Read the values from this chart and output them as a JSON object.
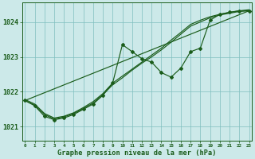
{
  "background_color": "#cce9e9",
  "grid_color": "#7fbfbf",
  "line_color": "#1a5c1a",
  "xlabel": "Graphe pression niveau de la mer (hPa)",
  "ylim": [
    1020.6,
    1024.55
  ],
  "xlim": [
    -0.3,
    23.3
  ],
  "yticks": [
    1021,
    1022,
    1023,
    1024
  ],
  "xticks": [
    0,
    1,
    2,
    3,
    4,
    5,
    6,
    7,
    8,
    9,
    10,
    11,
    12,
    13,
    14,
    15,
    16,
    17,
    18,
    19,
    20,
    21,
    22,
    23
  ],
  "series_zigzag_x": [
    0,
    1,
    2,
    3,
    4,
    5,
    6,
    7,
    8,
    9,
    10,
    11,
    12,
    13,
    14,
    15,
    16,
    17,
    18,
    19,
    20,
    21,
    22,
    23
  ],
  "series_zigzag_y": [
    1021.75,
    1021.6,
    1021.3,
    1021.2,
    1021.25,
    1021.35,
    1021.5,
    1021.65,
    1021.9,
    1022.25,
    1023.35,
    1023.15,
    1022.95,
    1022.85,
    1022.55,
    1022.42,
    1022.68,
    1023.15,
    1023.25,
    1024.05,
    1024.22,
    1024.28,
    1024.32,
    1024.32
  ],
  "series_trend_x": [
    0,
    23
  ],
  "series_trend_y": [
    1021.75,
    1024.32
  ],
  "series_band1_x": [
    0,
    1,
    2,
    3,
    4,
    5,
    6,
    7,
    8,
    9,
    10,
    11,
    12,
    13,
    14,
    15,
    16,
    17,
    18,
    19,
    20,
    21,
    22,
    23
  ],
  "series_band1_y": [
    1021.75,
    1021.62,
    1021.35,
    1021.22,
    1021.28,
    1021.38,
    1021.52,
    1021.68,
    1021.92,
    1022.2,
    1022.4,
    1022.62,
    1022.82,
    1023.0,
    1023.2,
    1023.42,
    1023.65,
    1023.88,
    1024.0,
    1024.12,
    1024.2,
    1024.25,
    1024.3,
    1024.32
  ],
  "series_band2_x": [
    0,
    1,
    2,
    3,
    4,
    5,
    6,
    7,
    8,
    9,
    10,
    11,
    12,
    13,
    14,
    15,
    16,
    17,
    18,
    19,
    20,
    21,
    22,
    23
  ],
  "series_band2_y": [
    1021.78,
    1021.65,
    1021.38,
    1021.25,
    1021.3,
    1021.4,
    1021.55,
    1021.72,
    1021.95,
    1022.25,
    1022.45,
    1022.65,
    1022.85,
    1023.05,
    1023.25,
    1023.48,
    1023.7,
    1023.93,
    1024.05,
    1024.15,
    1024.22,
    1024.27,
    1024.32,
    1024.35
  ]
}
